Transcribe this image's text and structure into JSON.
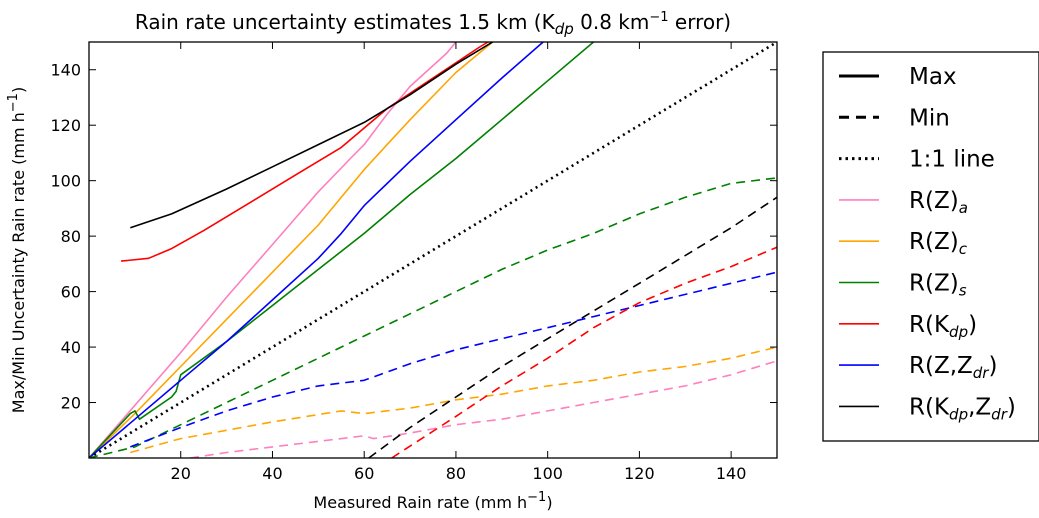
{
  "chart_data": {
    "type": "line",
    "title": "Rain rate uncertainty estimates 1.5 km (Kdp 0.8 km−1 error)",
    "title_parts": {
      "pre": "Rain rate uncertainty estimates 1.5 km (K",
      "sub": "dp",
      "mid": " 0.8 km",
      "sup": "−1",
      "post": " error)"
    },
    "xlabel_parts": {
      "pre": "Measured Rain rate (mm h",
      "sup": "−1",
      "post": ")"
    },
    "ylabel_parts": {
      "pre": "Max/Min Uncertainty Rain rate (mm h",
      "sup": "−1",
      "post": ")"
    },
    "xlim": [
      0,
      150
    ],
    "ylim": [
      0,
      150
    ],
    "xticks": [
      20,
      40,
      60,
      80,
      100,
      120,
      140
    ],
    "yticks": [
      20,
      40,
      60,
      80,
      100,
      120,
      140
    ],
    "grid": false,
    "legend_position": "outside-right",
    "legend": [
      {
        "base": "Max",
        "sub": "",
        "base2": "",
        "sub2": "",
        "tail": "",
        "color": "#000000",
        "style": "solid-thick"
      },
      {
        "base": "Min",
        "sub": "",
        "base2": "",
        "sub2": "",
        "tail": "",
        "color": "#000000",
        "style": "dashed-thick"
      },
      {
        "base": "1:1 line",
        "sub": "",
        "base2": "",
        "sub2": "",
        "tail": "",
        "color": "#000000",
        "style": "dotted-thick"
      },
      {
        "base": "R(Z)",
        "sub": "a",
        "base2": "",
        "sub2": "",
        "tail": "",
        "color": "#ff7fbf",
        "style": "solid"
      },
      {
        "base": "R(Z)",
        "sub": "c",
        "base2": "",
        "sub2": "",
        "tail": "",
        "color": "#ffa500",
        "style": "solid"
      },
      {
        "base": "R(Z)",
        "sub": "s",
        "base2": "",
        "sub2": "",
        "tail": "",
        "color": "#008000",
        "style": "solid"
      },
      {
        "base": "R(K",
        "sub": "dp",
        "base2": "",
        "sub2": "",
        "tail": ")",
        "color": "#ff0000",
        "style": "solid"
      },
      {
        "base": "R(Z,Z",
        "sub": "dr",
        "base2": "",
        "sub2": "",
        "tail": ")",
        "color": "#0000ff",
        "style": "solid"
      },
      {
        "base": "R(K",
        "sub": "dp",
        "base2": ",Z",
        "sub2": "dr",
        "tail": ")",
        "color": "#000000",
        "style": "solid"
      }
    ],
    "series": [
      {
        "name": "R(Z)a max",
        "color": "#ff7fbf",
        "dash": "solid",
        "points": [
          [
            0,
            0
          ],
          [
            10,
            19
          ],
          [
            20,
            38
          ],
          [
            30,
            58
          ],
          [
            40,
            77
          ],
          [
            50,
            96
          ],
          [
            57,
            108
          ],
          [
            60,
            113
          ],
          [
            65,
            124
          ],
          [
            70,
            134
          ],
          [
            78,
            146
          ],
          [
            80,
            150
          ]
        ]
      },
      {
        "name": "R(Z)c max",
        "color": "#ffa500",
        "dash": "solid",
        "points": [
          [
            0,
            0
          ],
          [
            10,
            16
          ],
          [
            20,
            33
          ],
          [
            30,
            50
          ],
          [
            40,
            67
          ],
          [
            50,
            84
          ],
          [
            55,
            94
          ],
          [
            60,
            104
          ],
          [
            65,
            113
          ],
          [
            70,
            122
          ],
          [
            80,
            139
          ],
          [
            88,
            150
          ]
        ]
      },
      {
        "name": "R(Z)s max",
        "color": "#008000",
        "dash": "solid",
        "points": [
          [
            0,
            0
          ],
          [
            9,
            16
          ],
          [
            10,
            17
          ],
          [
            11,
            14
          ],
          [
            18,
            22
          ],
          [
            19,
            24
          ],
          [
            20,
            30
          ],
          [
            30,
            42
          ],
          [
            40,
            55
          ],
          [
            50,
            68
          ],
          [
            60,
            81
          ],
          [
            70,
            95
          ],
          [
            80,
            108
          ],
          [
            90,
            122
          ],
          [
            100,
            136
          ],
          [
            110,
            150
          ]
        ]
      },
      {
        "name": "R(Kdp) max",
        "color": "#ff0000",
        "dash": "solid",
        "points": [
          [
            7,
            71
          ],
          [
            13,
            72
          ],
          [
            18,
            75.5
          ],
          [
            25,
            82
          ],
          [
            35,
            92
          ],
          [
            45,
            102
          ],
          [
            55,
            112
          ],
          [
            60,
            119
          ],
          [
            65,
            126
          ],
          [
            75,
            137
          ],
          [
            85,
            148
          ],
          [
            87,
            150
          ]
        ]
      },
      {
        "name": "R(Z,Zdr) max",
        "color": "#0000ff",
        "dash": "solid",
        "points": [
          [
            0,
            0
          ],
          [
            10,
            14
          ],
          [
            20,
            28
          ],
          [
            30,
            42
          ],
          [
            40,
            57
          ],
          [
            50,
            72
          ],
          [
            55,
            81
          ],
          [
            60,
            91
          ],
          [
            70,
            107
          ],
          [
            80,
            122
          ],
          [
            90,
            137
          ],
          [
            99,
            150
          ]
        ]
      },
      {
        "name": "R(Kdp,Zdr) max",
        "color": "#000000",
        "dash": "solid",
        "points": [
          [
            9,
            83
          ],
          [
            18,
            88
          ],
          [
            30,
            97
          ],
          [
            40,
            105
          ],
          [
            50,
            113
          ],
          [
            60,
            121
          ],
          [
            70,
            131
          ],
          [
            80,
            142
          ],
          [
            88,
            150
          ]
        ]
      },
      {
        "name": "1:1 line",
        "color": "#000000",
        "dash": "dotted",
        "points": [
          [
            0,
            0
          ],
          [
            150,
            150
          ]
        ]
      },
      {
        "name": "R(Z)s min",
        "color": "#008000",
        "dash": "dashed",
        "points": [
          [
            0,
            0
          ],
          [
            10,
            4
          ],
          [
            20,
            12
          ],
          [
            30,
            20
          ],
          [
            40,
            28
          ],
          [
            50,
            36
          ],
          [
            60,
            44
          ],
          [
            70,
            52
          ],
          [
            80,
            60
          ],
          [
            90,
            68
          ],
          [
            100,
            75
          ],
          [
            110,
            81
          ],
          [
            120,
            88
          ],
          [
            130,
            94
          ],
          [
            140,
            99
          ],
          [
            150,
            101
          ]
        ]
      },
      {
        "name": "R(Z,Zdr) min",
        "color": "#0000ff",
        "dash": "dashed",
        "points": [
          [
            9,
            4
          ],
          [
            20,
            11
          ],
          [
            30,
            17
          ],
          [
            40,
            22
          ],
          [
            50,
            26
          ],
          [
            55,
            27
          ],
          [
            60,
            28
          ],
          [
            70,
            34
          ],
          [
            80,
            39
          ],
          [
            90,
            43
          ],
          [
            100,
            47
          ],
          [
            110,
            51
          ],
          [
            120,
            55
          ],
          [
            130,
            59
          ],
          [
            140,
            63
          ],
          [
            150,
            67
          ]
        ]
      },
      {
        "name": "R(Z)c min",
        "color": "#ffa500",
        "dash": "dashed",
        "points": [
          [
            9,
            2
          ],
          [
            20,
            7
          ],
          [
            30,
            10
          ],
          [
            40,
            13
          ],
          [
            55,
            17
          ],
          [
            60,
            16
          ],
          [
            70,
            18
          ],
          [
            80,
            21
          ],
          [
            90,
            23
          ],
          [
            100,
            26
          ],
          [
            110,
            28
          ],
          [
            120,
            31
          ],
          [
            130,
            33
          ],
          [
            140,
            36
          ],
          [
            150,
            40
          ]
        ]
      },
      {
        "name": "R(Z)a min",
        "color": "#ff7fbf",
        "dash": "dashed",
        "points": [
          [
            22,
            0
          ],
          [
            30,
            2
          ],
          [
            40,
            4
          ],
          [
            50,
            6
          ],
          [
            60,
            8
          ],
          [
            62,
            7
          ],
          [
            70,
            9
          ],
          [
            80,
            12
          ],
          [
            90,
            14
          ],
          [
            100,
            17
          ],
          [
            110,
            20
          ],
          [
            120,
            23
          ],
          [
            130,
            26
          ],
          [
            140,
            30
          ],
          [
            150,
            35
          ]
        ]
      },
      {
        "name": "R(Kdp) min",
        "color": "#ff0000",
        "dash": "dashed",
        "points": [
          [
            66,
            0
          ],
          [
            80,
            15
          ],
          [
            90,
            26
          ],
          [
            100,
            36
          ],
          [
            110,
            47
          ],
          [
            120,
            56
          ],
          [
            130,
            63
          ],
          [
            140,
            69
          ],
          [
            150,
            76
          ]
        ]
      },
      {
        "name": "R(Kdp,Zdr) min",
        "color": "#000000",
        "dash": "dashed",
        "points": [
          [
            61,
            0
          ],
          [
            70,
            11
          ],
          [
            80,
            22
          ],
          [
            90,
            33
          ],
          [
            100,
            43
          ],
          [
            110,
            53
          ],
          [
            120,
            63
          ],
          [
            130,
            73
          ],
          [
            140,
            83
          ],
          [
            150,
            94
          ]
        ]
      }
    ]
  }
}
